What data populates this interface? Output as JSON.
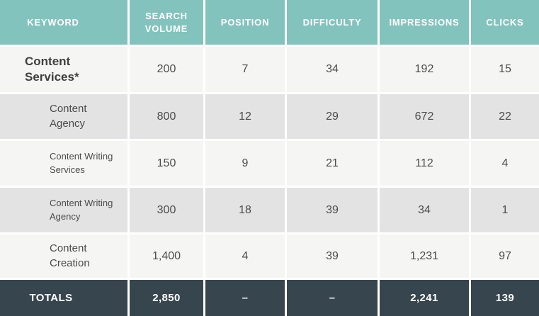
{
  "chart_data": {
    "type": "table",
    "columns": [
      "KEYWORD",
      "SEARCH VOLUME",
      "POSITION",
      "DIFFICULTY",
      "IMPRESSIONS",
      "CLICKS"
    ],
    "rows": [
      {
        "keyword": "Content Services*",
        "search_volume": "200",
        "position": "7",
        "difficulty": "34",
        "impressions": "192",
        "clicks": "15"
      },
      {
        "keyword": "Content Agency",
        "search_volume": "800",
        "position": "12",
        "difficulty": "29",
        "impressions": "672",
        "clicks": "22"
      },
      {
        "keyword": "Content Writing Services",
        "search_volume": "150",
        "position": "9",
        "difficulty": "21",
        "impressions": "112",
        "clicks": "4"
      },
      {
        "keyword": "Content Writing Agency",
        "search_volume": "300",
        "position": "18",
        "difficulty": "39",
        "impressions": "34",
        "clicks": "1"
      },
      {
        "keyword": "Content Creation",
        "search_volume": "1,400",
        "position": "4",
        "difficulty": "39",
        "impressions": "1,231",
        "clicks": "97"
      }
    ],
    "totals": {
      "label": "TOTALS",
      "search_volume": "2,850",
      "position": "–",
      "difficulty": "–",
      "impressions": "2,241",
      "clicks": "139"
    }
  },
  "colors": {
    "header_bg": "#83c3bd",
    "row_light": "#f5f5f4",
    "row_shaded": "#e3e3e3",
    "totals_bg": "#37454e",
    "body_text": "#4c4c4c",
    "header_text": "#ffffff",
    "separator": "#ffffff"
  }
}
